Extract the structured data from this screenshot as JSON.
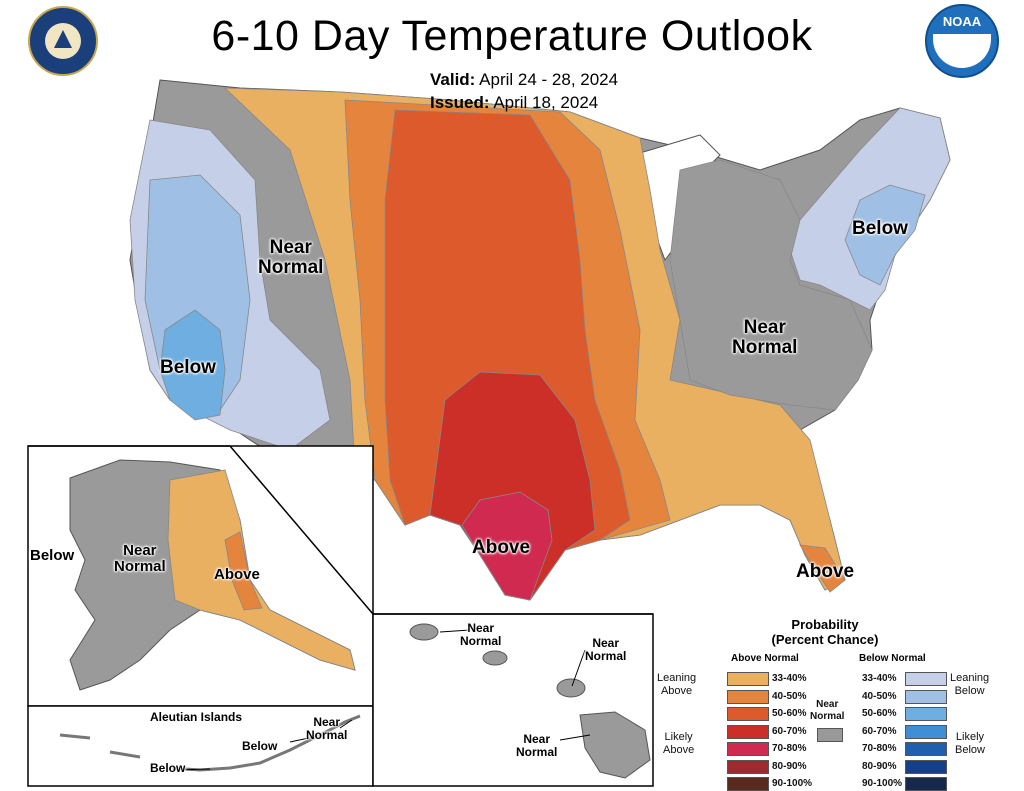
{
  "title": "6-10 Day Temperature Outlook",
  "valid_label": "Valid:",
  "valid_dates": "April 24 - 28, 2024",
  "issued_label": "Issued:",
  "issued_date": "April 18, 2024",
  "logos": {
    "commerce": "DEPARTMENT OF COMMERCE UNITED STATES OF AMERICA",
    "noaa": "NOAA"
  },
  "map_labels": {
    "near_normal_west": "Near\nNormal",
    "below_west": "Below",
    "below_northeast": "Below",
    "near_normal_east": "Near\nNormal",
    "above_south": "Above",
    "above_florida": "Above",
    "alaska_below": "Below",
    "alaska_near_normal": "Near\nNormal",
    "alaska_above": "Above",
    "aleutian_title": "Aleutian Islands",
    "aleutian_near_normal": "Near\nNormal",
    "aleutian_below_1": "Below",
    "aleutian_below_2": "Below",
    "hawaii_near_normal_1": "Near\nNormal",
    "hawaii_near_normal_2": "Near\nNormal",
    "hawaii_near_normal_3": "Near\nNormal"
  },
  "legend": {
    "title": "Probability\n(Percent Chance)",
    "above_header": "Above Normal",
    "below_header": "Below Normal",
    "near_normal": "Near\nNormal",
    "leaning_above": "Leaning\nAbove",
    "likely_above": "Likely\nAbove",
    "leaning_below": "Leaning\nBelow",
    "likely_below": "Likely\nBelow",
    "above_ranges": [
      {
        "range": "33-40%",
        "color": "#e8b060"
      },
      {
        "range": "40-50%",
        "color": "#e5853d"
      },
      {
        "range": "50-60%",
        "color": "#dc5a2c"
      },
      {
        "range": "60-70%",
        "color": "#cc2e28"
      },
      {
        "range": "70-80%",
        "color": "#d02a50"
      },
      {
        "range": "80-90%",
        "color": "#9c2b30"
      },
      {
        "range": "90-100%",
        "color": "#5a2a1f"
      }
    ],
    "below_ranges": [
      {
        "range": "33-40%",
        "color": "#c5d0e8"
      },
      {
        "range": "40-50%",
        "color": "#9fc0e4"
      },
      {
        "range": "50-60%",
        "color": "#6eaee0"
      },
      {
        "range": "60-70%",
        "color": "#3e8fd4"
      },
      {
        "range": "70-80%",
        "color": "#215fae"
      },
      {
        "range": "80-90%",
        "color": "#173f87"
      },
      {
        "range": "90-100%",
        "color": "#16284c"
      }
    ],
    "near_normal_color": "#999999"
  }
}
